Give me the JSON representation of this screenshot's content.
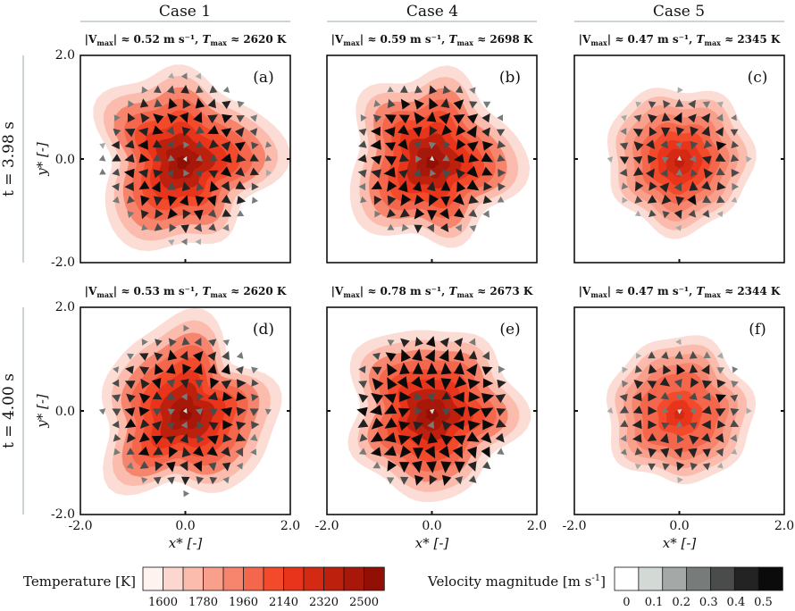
{
  "chart_data": {
    "type": "heatmap",
    "description_kind": "temperature contour with velocity quiver",
    "columns": [
      "Case 1",
      "Case 4",
      "Case 5"
    ],
    "rows": [
      "t = 3.98 s",
      "t = 4.00 s"
    ],
    "xlabel": "x* [-]",
    "ylabel": "y* [-]",
    "xlim": [
      -2.0,
      2.0
    ],
    "ylim": [
      -2.0,
      2.0
    ],
    "xticks": [
      "-2.0",
      "0.0",
      "2.0"
    ],
    "yticks": [
      "2.0",
      "0.0",
      "-2.0"
    ],
    "panels": [
      {
        "label": "(a)",
        "case": "Case 1",
        "time": "t = 3.98 s",
        "vmax_text": "≈ 0.52 m s⁻¹",
        "tmax_text": "≈ 2620 K",
        "vmax": 0.52,
        "tmax": 2620
      },
      {
        "label": "(b)",
        "case": "Case 4",
        "time": "t = 3.98 s",
        "vmax_text": "≈ 0.59 m s⁻¹",
        "tmax_text": "≈ 2698 K",
        "vmax": 0.59,
        "tmax": 2698
      },
      {
        "label": "(c)",
        "case": "Case 5",
        "time": "t = 3.98 s",
        "vmax_text": "≈ 0.47 m s⁻¹",
        "tmax_text": "≈ 2345 K",
        "vmax": 0.47,
        "tmax": 2345
      },
      {
        "label": "(d)",
        "case": "Case 1",
        "time": "t = 4.00 s",
        "vmax_text": "≈ 0.53 m s⁻¹",
        "tmax_text": "≈ 2620 K",
        "vmax": 0.53,
        "tmax": 2620
      },
      {
        "label": "(e)",
        "case": "Case 4",
        "time": "t = 4.00 s",
        "vmax_text": "≈ 0.78 m s⁻¹",
        "tmax_text": "≈ 2673 K",
        "vmax": 0.78,
        "tmax": 2673
      },
      {
        "label": "(f)",
        "case": "Case 5",
        "time": "t = 4.00 s",
        "vmax_text": "≈ 0.47 m s⁻¹",
        "tmax_text": "≈ 2344 K",
        "vmax": 0.47,
        "tmax": 2344
      }
    ],
    "temperature_colorbar": {
      "label": "Temperature [K]",
      "range": [
        1510,
        2590
      ],
      "ticks": [
        1600,
        1780,
        1960,
        2140,
        2320,
        2500
      ],
      "tick_labels": [
        "1600",
        "1780",
        "1960",
        "2140",
        "2320",
        "2500"
      ],
      "colors": [
        "#fff3f0",
        "#fcd7cf",
        "#fbbcae",
        "#f9a08d",
        "#f7846c",
        "#f5674c",
        "#f34a2c",
        "#e8341b",
        "#d42a14",
        "#be200e",
        "#a8180a",
        "#920f06"
      ]
    },
    "velocity_colorbar": {
      "label": "Velocity magnitude [m s",
      "label_exp": "-1",
      "label_end": "]",
      "range": [
        0,
        0.5
      ],
      "ticks": [
        0,
        0.1,
        0.2,
        0.3,
        0.4,
        0.5
      ],
      "tick_labels": [
        "0",
        "0.1",
        "0.2",
        "0.3",
        "0.4",
        "0.5"
      ],
      "colors": [
        "#ffffff",
        "#d3d9d5",
        "#a4a9a7",
        "#777c7a",
        "#4a4c4c",
        "#232323",
        "#0b0b0b"
      ]
    }
  }
}
